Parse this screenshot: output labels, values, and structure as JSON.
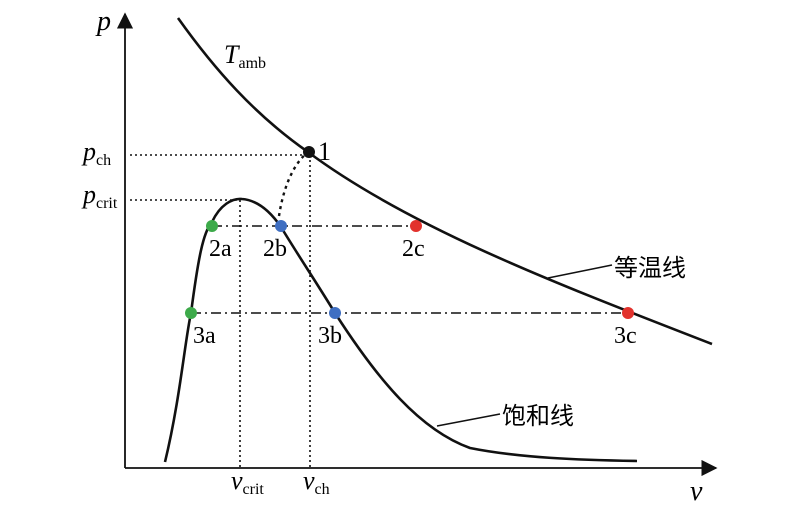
{
  "axes": {
    "y_label": "p",
    "x_label": "v"
  },
  "labels": {
    "t_amb_main": "T",
    "t_amb_sub": "amb",
    "p_ch_main": "p",
    "p_ch_sub": "ch",
    "p_crit_main": "p",
    "p_crit_sub": "crit",
    "v_crit_main": "v",
    "v_crit_sub": "crit",
    "v_ch_main": "v",
    "v_ch_sub": "ch",
    "isotherm": "等温线",
    "saturation": "饱和线"
  },
  "points": {
    "p1": {
      "label": "1",
      "color": "#111111"
    },
    "p2a": {
      "label": "2a",
      "color": "#3daa4a"
    },
    "p2b": {
      "label": "2b",
      "color": "#3f6fc2"
    },
    "p2c": {
      "label": "2c",
      "color": "#e2322d"
    },
    "p3a": {
      "label": "3a",
      "color": "#3daa4a"
    },
    "p3b": {
      "label": "3b",
      "color": "#3f6fc2"
    },
    "p3c": {
      "label": "3c",
      "color": "#e2322d"
    }
  }
}
